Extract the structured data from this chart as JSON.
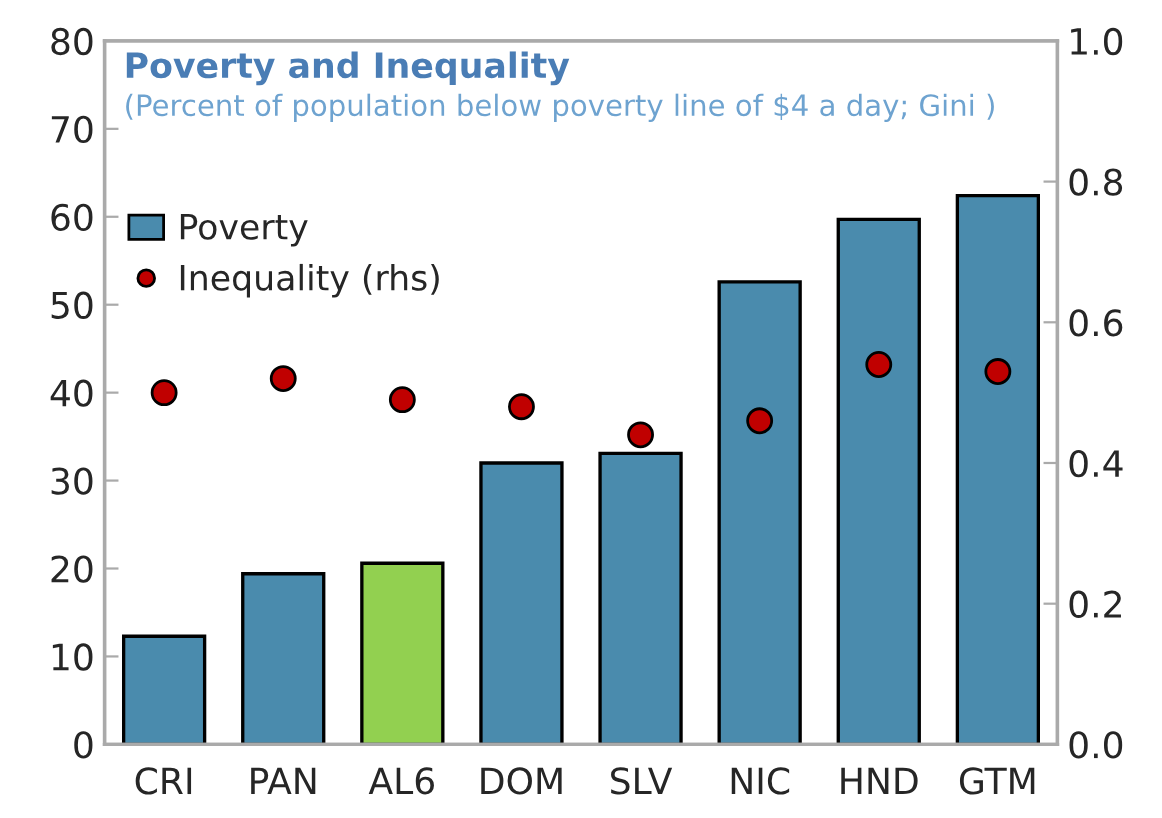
{
  "chart_data": {
    "type": "bar",
    "title": "Poverty and Inequality",
    "subtitle": "(Percent of population below poverty line of $4 a day; Gini )",
    "categories": [
      "CRI",
      "PAN",
      "AL6",
      "DOM",
      "SLV",
      "NIC",
      "HND",
      "GTM"
    ],
    "series": [
      {
        "name": "Poverty",
        "color": "#4a8bad",
        "colors": [
          "#4a8bad",
          "#4a8bad",
          "#92d050",
          "#4a8bad",
          "#4a8bad",
          "#4a8bad",
          "#4a8bad",
          "#4a8bad"
        ],
        "values": [
          12.3,
          19.4,
          20.6,
          32,
          33.1,
          52.6,
          59.7,
          62.4
        ]
      },
      {
        "name": "Inequality (rhs)",
        "type": "scatter",
        "axis": "y2",
        "color": "#c00000",
        "marker": "circle",
        "values": [
          0.5,
          0.52,
          0.49,
          0.48,
          0.44,
          0.46,
          0.54,
          0.53
        ]
      }
    ],
    "ylim": [
      0,
      80
    ],
    "yticks": [
      0,
      10,
      20,
      30,
      40,
      50,
      60,
      70,
      80
    ],
    "y2lim": [
      0,
      1.0
    ],
    "y2ticks": [
      {
        "value": 0,
        "label": "0.0"
      },
      {
        "value": 0.2,
        "label": "0.2"
      },
      {
        "value": 0.4,
        "label": "0.4"
      },
      {
        "value": 0.6,
        "label": "0.6"
      },
      {
        "value": 0.8,
        "label": "0.8"
      },
      {
        "value": 1.0,
        "label": "1.0"
      }
    ],
    "grid": false,
    "legend": "top left"
  }
}
